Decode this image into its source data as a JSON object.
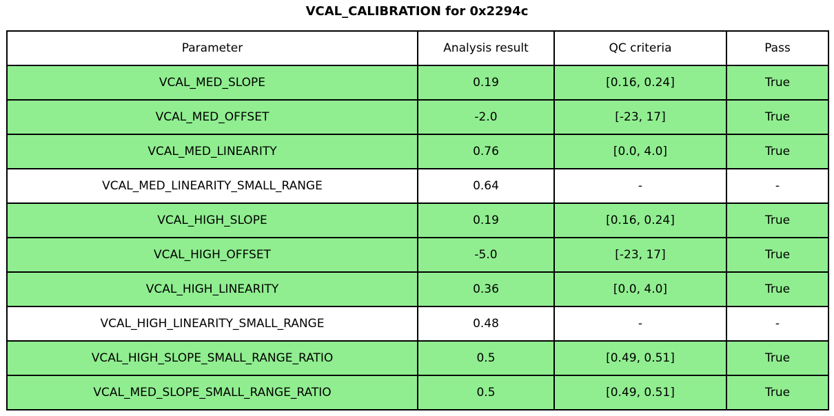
{
  "title": "VCAL_CALIBRATION for 0x2294c",
  "colors": {
    "pass_row_bg": "#90ee90",
    "neutral_row_bg": "#ffffff",
    "border": "#000000",
    "text": "#000000"
  },
  "chart_data": {
    "type": "table",
    "title": "VCAL_CALIBRATION for 0x2294c",
    "columns": [
      "Parameter",
      "Analysis result",
      "QC criteria",
      "Pass"
    ],
    "rows": [
      {
        "parameter": "VCAL_MED_SLOPE",
        "analysis_result": "0.19",
        "qc_criteria": "[0.16, 0.24]",
        "pass": "True",
        "highlighted": true
      },
      {
        "parameter": "VCAL_MED_OFFSET",
        "analysis_result": "-2.0",
        "qc_criteria": "[-23, 17]",
        "pass": "True",
        "highlighted": true
      },
      {
        "parameter": "VCAL_MED_LINEARITY",
        "analysis_result": "0.76",
        "qc_criteria": "[0.0, 4.0]",
        "pass": "True",
        "highlighted": true
      },
      {
        "parameter": "VCAL_MED_LINEARITY_SMALL_RANGE",
        "analysis_result": "0.64",
        "qc_criteria": "-",
        "pass": "-",
        "highlighted": false
      },
      {
        "parameter": "VCAL_HIGH_SLOPE",
        "analysis_result": "0.19",
        "qc_criteria": "[0.16, 0.24]",
        "pass": "True",
        "highlighted": true
      },
      {
        "parameter": "VCAL_HIGH_OFFSET",
        "analysis_result": "-5.0",
        "qc_criteria": "[-23, 17]",
        "pass": "True",
        "highlighted": true
      },
      {
        "parameter": "VCAL_HIGH_LINEARITY",
        "analysis_result": "0.36",
        "qc_criteria": "[0.0, 4.0]",
        "pass": "True",
        "highlighted": true
      },
      {
        "parameter": "VCAL_HIGH_LINEARITY_SMALL_RANGE",
        "analysis_result": "0.48",
        "qc_criteria": "-",
        "pass": "-",
        "highlighted": false
      },
      {
        "parameter": "VCAL_HIGH_SLOPE_SMALL_RANGE_RATIO",
        "analysis_result": "0.5",
        "qc_criteria": "[0.49, 0.51]",
        "pass": "True",
        "highlighted": true
      },
      {
        "parameter": "VCAL_MED_SLOPE_SMALL_RANGE_RATIO",
        "analysis_result": "0.5",
        "qc_criteria": "[0.49, 0.51]",
        "pass": "True",
        "highlighted": true
      }
    ]
  }
}
